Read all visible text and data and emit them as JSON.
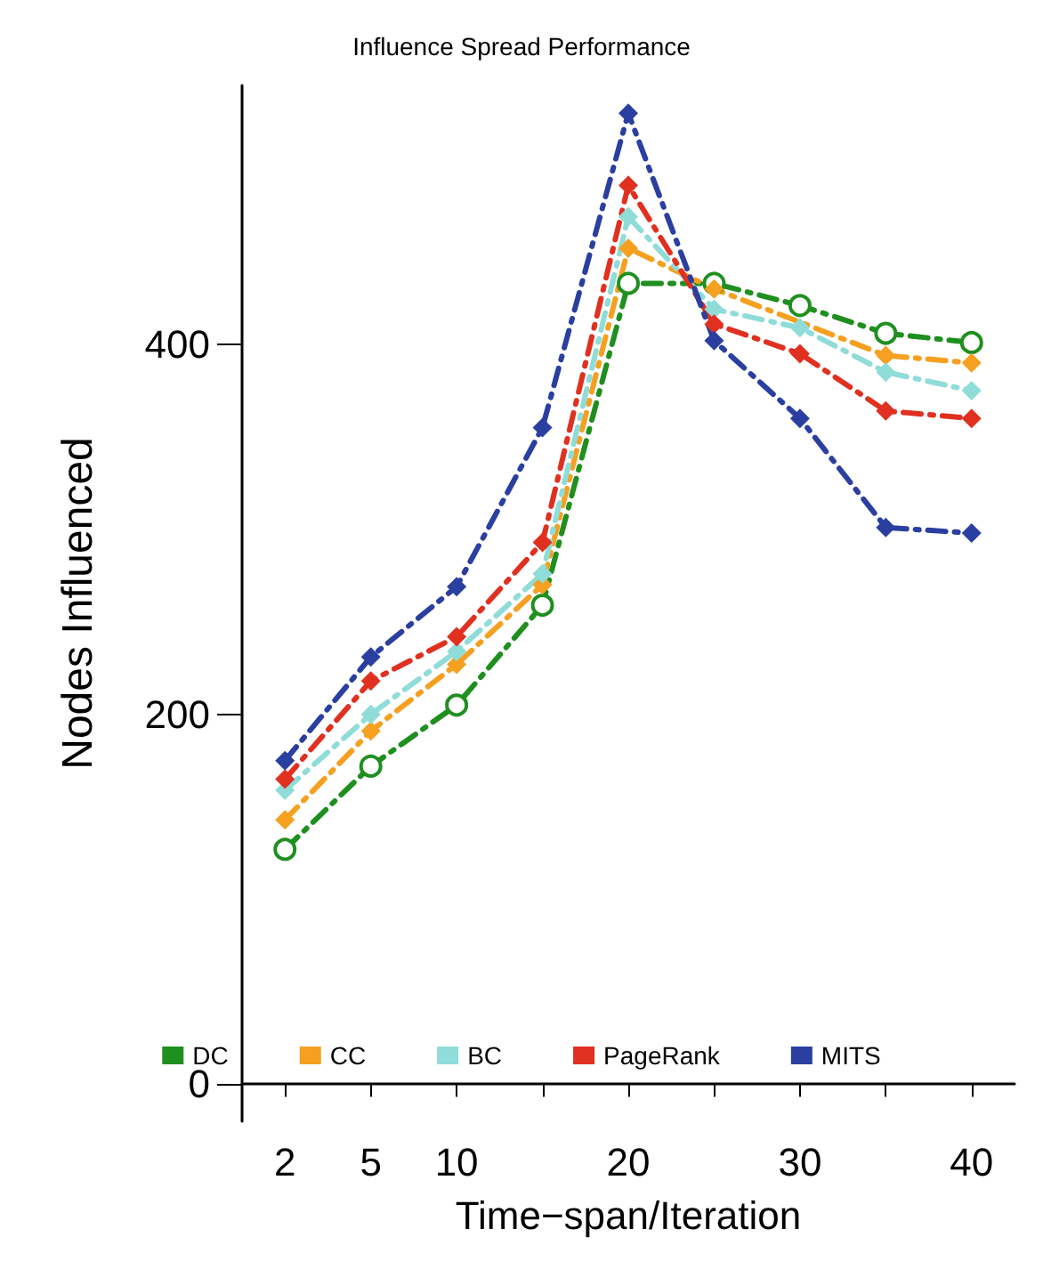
{
  "chart_data": {
    "type": "line",
    "title": "Influence Spread Performance",
    "xlabel": "Time−span/Iteration",
    "ylabel": "Nodes Influenced",
    "categories": [
      "2",
      "5",
      "10",
      null,
      "20",
      null,
      "30",
      null,
      "40"
    ],
    "series": [
      {
        "name": "DC",
        "color": "#1f8f1f",
        "marker": "circle",
        "values": [
          127,
          172,
          205,
          259,
          433,
          433,
          421,
          406,
          401
        ]
      },
      {
        "name": "CC",
        "color": "#f5a020",
        "marker": "diamond",
        "values": [
          143,
          191,
          227,
          270,
          452,
          430,
          null,
          394,
          390
        ]
      },
      {
        "name": "BC",
        "color": "#8fdcd8",
        "marker": "diamond",
        "values": [
          159,
          200,
          234,
          276,
          469,
          419,
          409,
          385,
          375
        ]
      },
      {
        "name": "PageRank",
        "color": "#e03020",
        "marker": "diamond",
        "values": [
          165,
          218,
          242,
          293,
          486,
          411,
          395,
          364,
          360
        ]
      },
      {
        "name": "MITS",
        "color": "#2a3fa0",
        "marker": "diamond",
        "values": [
          175,
          231,
          269,
          355,
          525,
          402,
          360,
          301,
          298
        ]
      }
    ],
    "ylim": [
      -20,
      540
    ],
    "yticks": [
      0,
      200,
      400
    ],
    "grid": false,
    "legend": "bottom",
    "line_style": "dashed"
  }
}
